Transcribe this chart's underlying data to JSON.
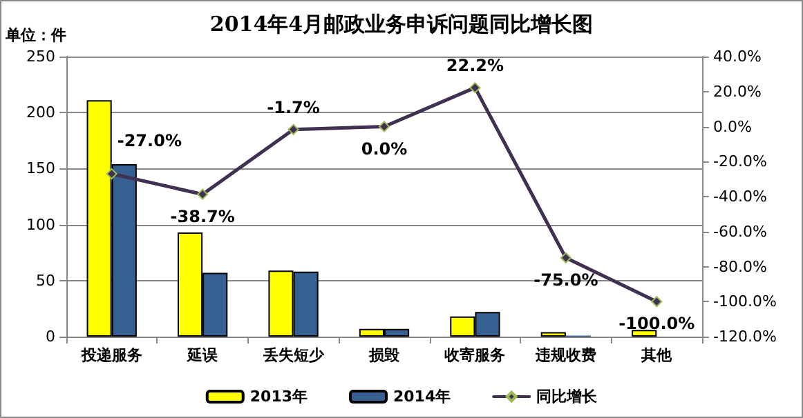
{
  "chart_data": {
    "type": "bar",
    "title": "2014年4月邮政业务申诉问题同比增长图",
    "ylabel": "单位：件",
    "categories": [
      "投递服务",
      "延误",
      "丢失短少",
      "损毁",
      "收寄服务",
      "违规收费",
      "其他"
    ],
    "series": [
      {
        "name": "2013年",
        "color": "#ffff00",
        "values": [
          211,
          93,
          59,
          7,
          18,
          4,
          6
        ]
      },
      {
        "name": "2014年",
        "color": "#366092",
        "values": [
          154,
          57,
          58,
          7,
          22,
          1,
          0
        ]
      },
      {
        "name": "同比增长",
        "type": "line",
        "axis": "y2",
        "color": "#403152",
        "marker": "diamond",
        "values": [
          -27.0,
          -38.7,
          -1.7,
          0.0,
          22.2,
          -75.0,
          -100.0
        ],
        "value_labels": [
          "-27.0%",
          "-38.7%",
          "-1.7%",
          "0.0%",
          "22.2%",
          "-75.0%",
          "-100.0%"
        ]
      }
    ],
    "ylim": [
      0,
      250
    ],
    "yticks": [
      0,
      50,
      100,
      150,
      200,
      250
    ],
    "y2lim": [
      -120,
      40
    ],
    "y2ticks": [
      {
        "value": -120,
        "label": "-120.0%"
      },
      {
        "value": -100,
        "label": "-100.0%"
      },
      {
        "value": -80,
        "label": "-80.0%"
      },
      {
        "value": -60,
        "label": "-60.0%"
      },
      {
        "value": -40,
        "label": "-40.0%"
      },
      {
        "value": -20,
        "label": "-20.0%"
      },
      {
        "value": 0,
        "label": "0.0%"
      },
      {
        "value": 20,
        "label": "20.0%"
      },
      {
        "value": 40,
        "label": "40.0%"
      }
    ],
    "grid": "y",
    "legend": "bottom"
  }
}
